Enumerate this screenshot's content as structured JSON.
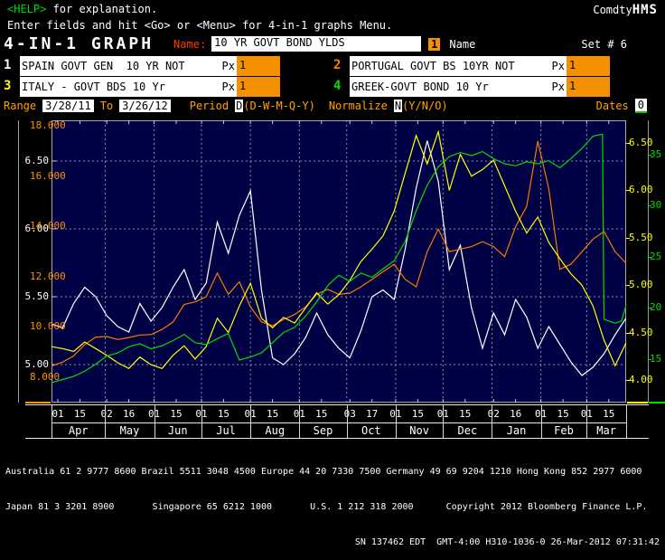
{
  "header": {
    "help_label": "<HELP>",
    "help_rest": " for explanation.",
    "terminal_normal": "Comdty",
    "terminal_bold": "HMS",
    "subtitle": "Enter fields and hit <Go> or <Menu> for 4-in-1 graphs Menu.",
    "screen_title": "4-IN-1 GRAPH",
    "name_label": "Name:",
    "name_value": "10 YR GOVT BOND YLDS",
    "name_badge": "1",
    "name_badge_label": "Name",
    "set_label": "Set # 6"
  },
  "tickers": [
    {
      "num": "1",
      "color": "#ffffff",
      "label": "SPAIN GOVT GEN  10 YR NOT",
      "px_label": "Px",
      "px_value": "1"
    },
    {
      "num": "2",
      "color": "#ff8000",
      "label": "PORTUGAL GOVT BS 10YR NOT",
      "px_label": "Px",
      "px_value": "1"
    },
    {
      "num": "3",
      "color": "#ffff00",
      "label": "ITALY - GOVT BDS 10 Yr",
      "px_label": "Px",
      "px_value": "1"
    },
    {
      "num": "4",
      "color": "#00e000",
      "label": "GREEK-GOVT BOND 10 Yr",
      "px_label": "Px",
      "px_value": "1"
    }
  ],
  "range_row": {
    "range_label": "Range",
    "from_value": "3/28/11",
    "to_label": "To",
    "to_value": "3/26/12",
    "period_label": "Period",
    "period_value": "D",
    "period_options": "(D-W-M-Q-Y)",
    "normalize_label": "Normalize",
    "normalize_value": "N",
    "normalize_options": "(Y/N/O)",
    "dates_label": "Dates",
    "dates_value": "0"
  },
  "chart_data": {
    "type": "line",
    "title": "10 YR GOVT BOND YLDS",
    "x_range": [
      "3/28/11",
      "3/26/12"
    ],
    "plot_bg": "#000045",
    "grid_color": "#8890a0",
    "border_color": "#a8a8a8",
    "day_grid": [
      0,
      7,
      14,
      21,
      28,
      35,
      42,
      49,
      56,
      63,
      70,
      77,
      84,
      91,
      98,
      105,
      112,
      119,
      126,
      133,
      140,
      147,
      154,
      161,
      168,
      175,
      182,
      189,
      196,
      203,
      210,
      217,
      224,
      231,
      238,
      245,
      252,
      259,
      266,
      273,
      280,
      287,
      294,
      301,
      308,
      315,
      322,
      329,
      336,
      343,
      350,
      357,
      364
    ],
    "series": [
      {
        "name": "SPAIN GOVT GEN  10 YR NOT",
        "last": "5.343",
        "color": "#ffffff",
        "axis": "left_outer",
        "values": [
          5.3,
          5.27,
          5.45,
          5.57,
          5.5,
          5.36,
          5.28,
          5.24,
          5.45,
          5.32,
          5.42,
          5.57,
          5.7,
          5.48,
          5.6,
          6.05,
          5.82,
          6.1,
          6.28,
          5.55,
          5.05,
          5.0,
          5.08,
          5.2,
          5.38,
          5.22,
          5.12,
          5.05,
          5.25,
          5.5,
          5.55,
          5.48,
          5.85,
          6.3,
          6.65,
          6.35,
          5.7,
          5.88,
          5.42,
          5.12,
          5.38,
          5.22,
          5.48,
          5.35,
          5.12,
          5.28,
          5.15,
          5.02,
          4.92,
          4.98,
          5.08,
          5.22,
          5.343
        ]
      },
      {
        "name": "PORTUGAL GOVT BS 10YR NOT",
        "last": "12.536",
        "color": "#ff7800",
        "axis": "left_inner",
        "values": [
          8.45,
          8.6,
          8.85,
          9.3,
          9.6,
          9.62,
          9.5,
          9.58,
          9.68,
          9.7,
          9.9,
          10.2,
          10.9,
          11.0,
          11.2,
          12.15,
          11.3,
          11.8,
          10.8,
          10.2,
          10.05,
          10.3,
          10.5,
          10.8,
          11.3,
          11.5,
          11.3,
          11.35,
          11.6,
          11.9,
          12.2,
          12.5,
          11.9,
          11.6,
          13.0,
          13.9,
          13.0,
          13.1,
          13.2,
          13.4,
          13.2,
          12.8,
          14.0,
          14.8,
          17.4,
          15.5,
          12.3,
          12.5,
          13.0,
          13.5,
          13.8,
          13.0,
          12.536
        ]
      },
      {
        "name": "ITALY - GOVT BDS 10 Yr",
        "last": "4.392",
        "color": "#ffff00",
        "axis": "right_inner",
        "values": [
          4.35,
          4.33,
          4.3,
          4.4,
          4.33,
          4.26,
          4.18,
          4.12,
          4.24,
          4.16,
          4.12,
          4.26,
          4.36,
          4.22,
          4.35,
          4.65,
          4.5,
          4.78,
          5.02,
          4.65,
          4.55,
          4.66,
          4.6,
          4.76,
          4.92,
          4.8,
          4.9,
          5.05,
          5.25,
          5.38,
          5.52,
          5.78,
          6.18,
          6.58,
          6.28,
          6.62,
          6.0,
          6.38,
          6.15,
          6.22,
          6.32,
          6.05,
          5.78,
          5.55,
          5.72,
          5.45,
          5.28,
          5.12,
          5.0,
          4.78,
          4.42,
          4.15,
          4.392
        ]
      },
      {
        "name": "GREEK-GOVT BOND 10 Yr",
        "last": "20.273",
        "color": "#00dc00",
        "axis": "right_outer",
        "days": [
          0,
          7,
          14,
          21,
          28,
          35,
          42,
          49,
          56,
          63,
          70,
          77,
          84,
          91,
          98,
          105,
          112,
          119,
          126,
          133,
          140,
          147,
          154,
          161,
          168,
          175,
          182,
          189,
          196,
          203,
          210,
          217,
          224,
          231,
          238,
          245,
          252,
          259,
          266,
          273,
          280,
          287,
          294,
          301,
          308,
          315,
          322,
          329,
          336,
          343,
          349,
          350,
          357,
          361,
          364
        ],
        "values": [
          12.7,
          13.0,
          13.3,
          13.8,
          14.5,
          15.3,
          15.6,
          16.2,
          16.5,
          16.0,
          16.3,
          16.8,
          17.4,
          16.6,
          16.4,
          17.0,
          17.5,
          14.9,
          15.2,
          15.6,
          16.6,
          17.6,
          18.1,
          19.2,
          20.6,
          22.2,
          23.2,
          22.6,
          23.4,
          23.0,
          23.8,
          24.6,
          26.5,
          29.5,
          32.0,
          33.8,
          34.8,
          35.2,
          34.9,
          35.3,
          34.6,
          34.1,
          33.9,
          34.3,
          34.1,
          34.4,
          33.7,
          34.6,
          35.6,
          36.8,
          37.0,
          18.9,
          18.5,
          18.7,
          20.273
        ]
      }
    ],
    "axes": {
      "left_outer": {
        "color": "#ffffff",
        "ticks": [
          6.5,
          6.0,
          5.5,
          5.0
        ],
        "ylim": [
          4.72,
          6.8
        ],
        "decimals": 2
      },
      "left_inner": {
        "color": "#ff9000",
        "ticks": [
          18,
          16,
          14,
          12,
          10,
          8
        ],
        "ylim": [
          6.99,
          18.23
        ],
        "decimals": 3
      },
      "right_inner": {
        "color": "#ffff00",
        "ticks": [
          6.5,
          6.0,
          5.5,
          5.0,
          4.5,
          4.0
        ],
        "ylim": [
          3.76,
          6.74
        ],
        "decimals": 2
      },
      "right_outer": {
        "color": "#00dc00",
        "ticks": [
          35,
          30,
          25,
          20,
          15
        ],
        "ylim": [
          10.74,
          38.35
        ],
        "decimals": 0
      }
    },
    "month_gridline_days": [
      34,
      65,
      95,
      126,
      157,
      187,
      218,
      248,
      279,
      310,
      339
    ],
    "bottom_axis": {
      "date_ticks": [
        {
          "label": "01",
          "day": 4
        },
        {
          "label": "15",
          "day": 18
        },
        {
          "label": "02",
          "day": 35
        },
        {
          "label": "16",
          "day": 49
        },
        {
          "label": "01",
          "day": 65
        },
        {
          "label": "15",
          "day": 79
        },
        {
          "label": "01",
          "day": 95
        },
        {
          "label": "15",
          "day": 109
        },
        {
          "label": "01",
          "day": 126
        },
        {
          "label": "15",
          "day": 140
        },
        {
          "label": "01",
          "day": 157
        },
        {
          "label": "15",
          "day": 171
        },
        {
          "label": "03",
          "day": 189
        },
        {
          "label": "17",
          "day": 203
        },
        {
          "label": "01",
          "day": 218
        },
        {
          "label": "15",
          "day": 232
        },
        {
          "label": "01",
          "day": 248
        },
        {
          "label": "15",
          "day": 262
        },
        {
          "label": "02",
          "day": 280
        },
        {
          "label": "16",
          "day": 294
        },
        {
          "label": "01",
          "day": 310
        },
        {
          "label": "15",
          "day": 324
        },
        {
          "label": "01",
          "day": 339
        },
        {
          "label": "15",
          "day": 353
        }
      ],
      "month_labels": [
        "Apr",
        "May",
        "Jun",
        "Jul",
        "Aug",
        "Sep",
        "Oct",
        "Nov",
        "Dec",
        "Jan",
        "Feb",
        "Mar"
      ],
      "month_boundaries": [
        0,
        34,
        65,
        95,
        126,
        157,
        187,
        218,
        248,
        279,
        310,
        339,
        364
      ]
    }
  },
  "footer": {
    "line1": "Australia 61 2 9777 8600 Brazil 5511 3048 4500 Europe 44 20 7330 7500 Germany 49 69 9204 1210 Hong Kong 852 2977 6000",
    "line2": "Japan 81 3 3201 8900       Singapore 65 6212 1000       U.S. 1 212 318 2000      Copyright 2012 Bloomberg Finance L.P.",
    "line3": "SN 137462 EDT  GMT-4:00 H310-1036-0 26-Mar-2012 07:31:42"
  }
}
